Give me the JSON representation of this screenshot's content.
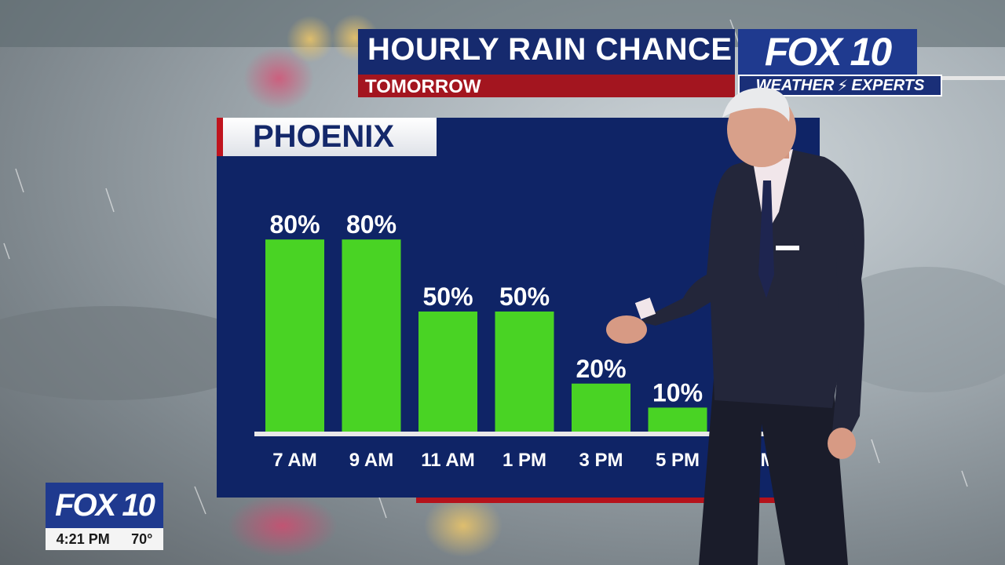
{
  "header": {
    "title": "HOURLY RAIN CHANCE",
    "subtitle": "TOMORROW"
  },
  "brand": {
    "logo": "FOX 10",
    "tag": "WEATHER",
    "tag2": "EXPERTS",
    "tag_icon": "lightning-bolt-icon"
  },
  "location": "PHOENIX",
  "bug": {
    "logo": "FOX 10",
    "time": "4:21 PM",
    "temp": "70°"
  },
  "colors": {
    "bar": "#49d324",
    "panel": "#0f2466",
    "title_bg": "#162a6e",
    "subtitle_bg": "#a3151f"
  },
  "chart_data": {
    "type": "bar",
    "categories": [
      "7 AM",
      "9 AM",
      "11 AM",
      "1 PM",
      "3 PM",
      "5 PM",
      "7 PM"
    ],
    "values": [
      80,
      80,
      50,
      50,
      20,
      10,
      null
    ],
    "value_labels": [
      "80%",
      "80%",
      "50%",
      "50%",
      "20%",
      "10%",
      ""
    ],
    "title": "PHOENIX",
    "ylim": [
      0,
      100
    ],
    "grid": false
  }
}
